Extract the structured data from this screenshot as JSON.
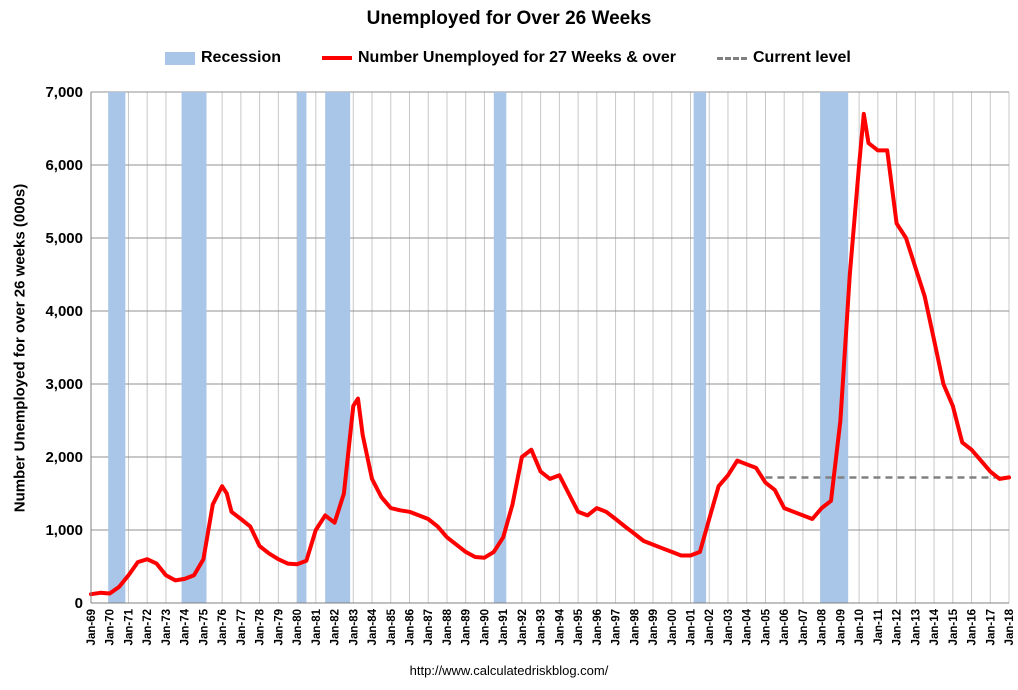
{
  "chart_data": {
    "type": "line",
    "title": "Unemployed for Over 26 Weeks",
    "ylabel": "Number Unemployed for over 26 weeks (000s)",
    "xlabel": "",
    "source": "http://www.calculatedriskblog.com/",
    "ylim": [
      0,
      7000
    ],
    "xlim": [
      "Jan-69",
      "Jan-18"
    ],
    "grid": true,
    "legend_placement": "top",
    "legend": {
      "recession": "Recession",
      "series": "Number Unemployed for 27 Weeks & over",
      "current": "Current level"
    },
    "colors": {
      "recession": "#a9c6e8",
      "series": "#ff0000",
      "current": "#808080",
      "grid": "#c8c8c8"
    },
    "y_ticks": [
      0,
      1000,
      2000,
      3000,
      4000,
      5000,
      6000,
      7000
    ],
    "y_tick_labels": [
      "0",
      "1,000",
      "2,000",
      "3,000",
      "4,000",
      "5,000",
      "6,000",
      "7,000"
    ],
    "x_tick_labels": [
      "Jan-69",
      "Jan-70",
      "Jan-71",
      "Jan-72",
      "Jan-73",
      "Jan-74",
      "Jan-75",
      "Jan-76",
      "Jan-77",
      "Jan-78",
      "Jan-79",
      "Jan-80",
      "Jan-81",
      "Jan-82",
      "Jan-83",
      "Jan-84",
      "Jan-85",
      "Jan-86",
      "Jan-87",
      "Jan-88",
      "Jan-89",
      "Jan-90",
      "Jan-91",
      "Jan-92",
      "Jan-93",
      "Jan-94",
      "Jan-95",
      "Jan-96",
      "Jan-97",
      "Jan-98",
      "Jan-99",
      "Jan-00",
      "Jan-01",
      "Jan-02",
      "Jan-03",
      "Jan-04",
      "Jan-05",
      "Jan-06",
      "Jan-07",
      "Jan-08",
      "Jan-09",
      "Jan-10",
      "Jan-11",
      "Jan-12",
      "Jan-13",
      "Jan-14",
      "Jan-15",
      "Jan-16",
      "Jan-17",
      "Jan-18"
    ],
    "recessions": [
      {
        "start": "Dec-69",
        "end": "Nov-70"
      },
      {
        "start": "Nov-73",
        "end": "Mar-75"
      },
      {
        "start": "Jan-80",
        "end": "Jul-80"
      },
      {
        "start": "Jul-81",
        "end": "Nov-82"
      },
      {
        "start": "Jul-90",
        "end": "Mar-91"
      },
      {
        "start": "Mar-01",
        "end": "Nov-01"
      },
      {
        "start": "Dec-07",
        "end": "Jun-09"
      }
    ],
    "current_level": {
      "value": 1720,
      "from": "Jan-05",
      "to": "Jan-18"
    },
    "series": [
      {
        "name": "Number Unemployed for 27 Weeks & over",
        "x": [
          "Jan-69",
          "Jul-69",
          "Jan-70",
          "Jul-70",
          "Jan-71",
          "Jul-71",
          "Jan-72",
          "Jul-72",
          "Jan-73",
          "Jul-73",
          "Jan-74",
          "Jul-74",
          "Jan-75",
          "Jul-75",
          "Jan-76",
          "Apr-76",
          "Jul-76",
          "Jan-77",
          "Jul-77",
          "Jan-78",
          "Jul-78",
          "Jan-79",
          "Jul-79",
          "Jan-80",
          "Jul-80",
          "Jan-81",
          "Jul-81",
          "Jan-82",
          "Jul-82",
          "Jan-83",
          "Apr-83",
          "Jul-83",
          "Jan-84",
          "Jul-84",
          "Jan-85",
          "Jul-85",
          "Jan-86",
          "Jul-86",
          "Jan-87",
          "Jul-87",
          "Jan-88",
          "Jul-88",
          "Jan-89",
          "Jul-89",
          "Jan-90",
          "Jul-90",
          "Jan-91",
          "Jul-91",
          "Jan-92",
          "Jul-92",
          "Jan-93",
          "Jul-93",
          "Jan-94",
          "Jul-94",
          "Jan-95",
          "Jul-95",
          "Jan-96",
          "Jul-96",
          "Jan-97",
          "Jul-97",
          "Jan-98",
          "Jul-98",
          "Jan-99",
          "Jul-99",
          "Jan-00",
          "Jul-00",
          "Jan-01",
          "Jul-01",
          "Jan-02",
          "Jul-02",
          "Jan-03",
          "Jul-03",
          "Jan-04",
          "Jul-04",
          "Jan-05",
          "Jul-05",
          "Jan-06",
          "Jul-06",
          "Jan-07",
          "Jul-07",
          "Jan-08",
          "Jul-08",
          "Jan-09",
          "Jul-09",
          "Jan-10",
          "Apr-10",
          "Jul-10",
          "Jan-11",
          "Jul-11",
          "Jan-12",
          "Jul-12",
          "Jan-13",
          "Jul-13",
          "Jan-14",
          "Jul-14",
          "Jan-15",
          "Jul-15",
          "Jan-16",
          "Jul-16",
          "Jan-17",
          "Jul-17",
          "Jan-18"
        ],
        "y": [
          120,
          140,
          130,
          220,
          380,
          560,
          600,
          540,
          380,
          310,
          330,
          380,
          600,
          1350,
          1600,
          1500,
          1250,
          1150,
          1050,
          780,
          680,
          600,
          540,
          530,
          580,
          1000,
          1200,
          1100,
          1500,
          2700,
          2800,
          2300,
          1700,
          1450,
          1300,
          1270,
          1250,
          1200,
          1150,
          1050,
          900,
          800,
          700,
          630,
          620,
          700,
          900,
          1350,
          2000,
          2100,
          1800,
          1700,
          1750,
          1500,
          1250,
          1200,
          1300,
          1250,
          1150,
          1050,
          950,
          850,
          800,
          750,
          700,
          650,
          650,
          700,
          1150,
          1600,
          1750,
          1950,
          1900,
          1850,
          1650,
          1550,
          1300,
          1250,
          1200,
          1150,
          1300,
          1400,
          2500,
          4500,
          6000,
          6700,
          6300,
          6200,
          6200,
          5200,
          5000,
          4600,
          4200,
          3600,
          3000,
          2700,
          2200,
          2100,
          1950,
          1800,
          1700,
          1720
        ]
      }
    ]
  }
}
